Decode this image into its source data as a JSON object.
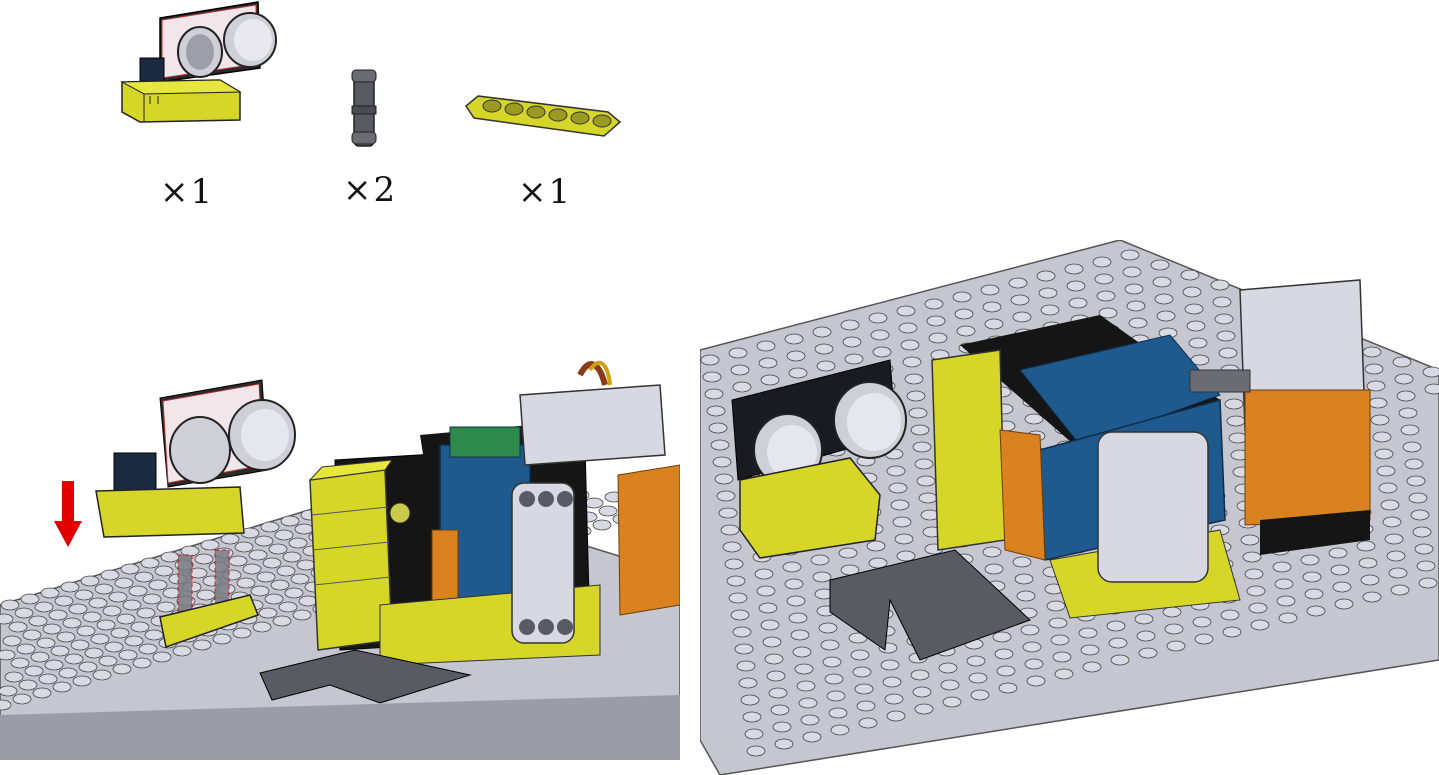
{
  "parts": [
    {
      "name": "ultrasonic-sensor-module",
      "quantity": "×1"
    },
    {
      "name": "connector-pin",
      "quantity": "×2"
    },
    {
      "name": "yellow-beam-1x6",
      "quantity": "×1"
    }
  ],
  "colors": {
    "baseplate": "#c9c9d3",
    "stud": "#d9d9e4",
    "yellow": "#d6d629",
    "blue": "#1f5a8f",
    "black": "#151515",
    "orange": "#d9821f",
    "grey": "#a8a8b4",
    "silver": "#dcdce6",
    "red_arrow": "#e00000"
  }
}
